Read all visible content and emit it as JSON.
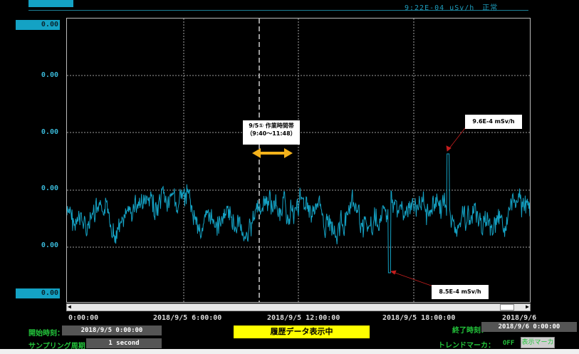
{
  "header": {
    "text": "9:22E-04 uSv/h　正常"
  },
  "y_axis": {
    "labels": [
      "0.00",
      "0.00",
      "0.00",
      "0.00",
      "0.00",
      "0.00"
    ]
  },
  "x_axis": {
    "labels": [
      "0:00:00",
      "2018/9/5 6:00:00",
      "2018/9/5 12:00:00",
      "2018/9/5 18:00:00",
      "2018/9/6"
    ]
  },
  "chart_data": {
    "type": "line",
    "series_color": "#14a2c4",
    "grid": true,
    "x_start": "2018/9/5 0:00:00",
    "x_end": "2018/9/6 0:00:00",
    "annotations": [
      {
        "text": "9/5① 作業時間帯",
        "text2": "（9:40～11:48）",
        "kind": "period"
      },
      {
        "text": "9.6E-4 mSv/h",
        "kind": "max"
      },
      {
        "text": "8.5E-4 mSv/h",
        "kind": "min"
      }
    ]
  },
  "footer": {
    "start_label": "開始時刻：",
    "start_value": "2018/9/5 0:00:00",
    "sampling_label": "サンプリング周期：",
    "sampling_value": "1 second",
    "status": "履歴データ表示中",
    "end_label": "終了時刻：",
    "end_value": "2018/9/6 0:00:00",
    "marker_label": "トレンドマーカ：",
    "marker_value": "OFF",
    "marker_button": "表示マーカ"
  }
}
